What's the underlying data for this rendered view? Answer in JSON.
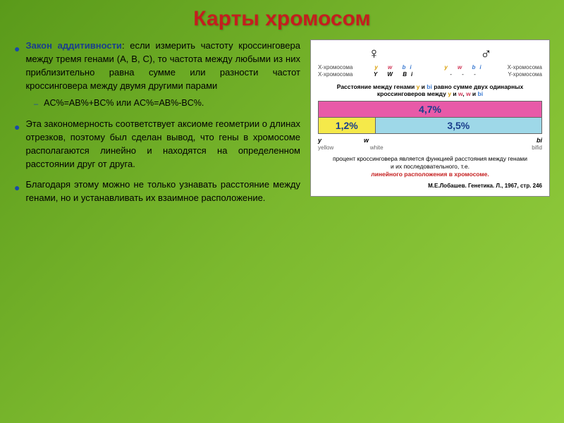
{
  "title": "Карты хромосом",
  "bullets": {
    "b1_law": "Закон аддитивности",
    "b1_text": ": если измерить частоту кроссинговера между тремя генами (A, B, C), то частота между любыми из них приблизительно равна сумме или разности частот кроссинговера между двумя другими парами",
    "b1_sub": "AC%=AB%+BC% или AC%=AB%-BC%.",
    "b2": "Эта закономерность соответствует аксиоме геометрии о длинах отрезков, поэтому был сделан вывод, что гены в хромосоме располагаются линейно и находятся на определенном расстоянии друг от друга.",
    "b3": "Благодаря этому можно не только узнавать расстояние между генами, но и устанавливать их взаимное расположение."
  },
  "diagram": {
    "female_symbol": "♀",
    "male_symbol": "♂",
    "xchrom_label": "Х-хромосома",
    "ychrom_label": "Y-хромосома",
    "gene_y": "y",
    "gene_w": "w",
    "gene_bi": "bi",
    "gene_Y": "Y",
    "gene_W": "W",
    "gene_Bi": "Bi",
    "dash": "-",
    "caption_a": "Расстояние между генами ",
    "caption_b": " и ",
    "caption_c": " равно сумме двух одинарных",
    "caption_d": "кроссинговеров между ",
    "caption_and": " и ",
    "caption_comma": ", ",
    "bar_top": "4,7%",
    "bar_yellow": "1,2%",
    "bar_cyan": "3,5%",
    "bar_yellow_width": "25.5%",
    "axis_y": "y",
    "axis_w": "w",
    "axis_bi": "bi",
    "axis2_y": "yellow",
    "axis2_w": "white",
    "axis2_bi": "bifid",
    "desc_a": "процент кроссинговера является функцией расстояния между генами",
    "desc_b": "и их последовательного, т.е.",
    "desc_red": "линейного расположения в хромосоме.",
    "cite": "М.Е.Лобашев. Генетика. Л., 1967, стр. 246"
  }
}
